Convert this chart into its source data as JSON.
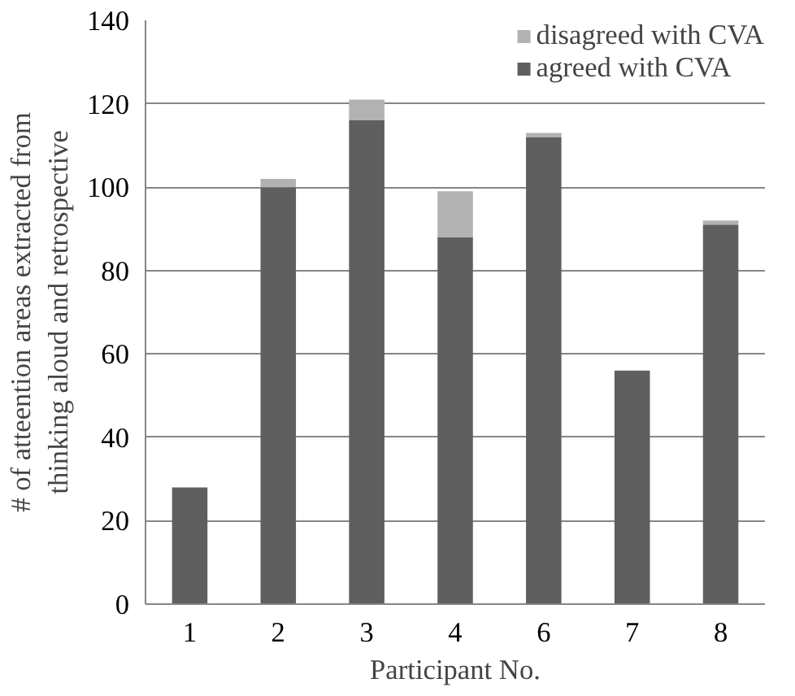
{
  "chart_data": {
    "type": "bar",
    "stacked": true,
    "xlabel": "Participant No.",
    "ylabel": "# of atteention areas extracted from thinking aloud and retrospective",
    "categories": [
      "1",
      "2",
      "3",
      "4",
      "6",
      "7",
      "8"
    ],
    "series": [
      {
        "name": "agreed with CVA",
        "color": "#5f5f5f",
        "values": [
          28,
          100,
          116,
          88,
          112,
          56,
          91
        ]
      },
      {
        "name": "disagreed with CVA",
        "color": "#b2b2b2",
        "values": [
          0,
          2,
          5,
          11,
          1,
          0,
          1
        ]
      }
    ],
    "ylim": [
      0,
      140
    ],
    "yticks": [
      0,
      20,
      40,
      60,
      80,
      100,
      120,
      140
    ],
    "grid": "y",
    "legend": "top right"
  }
}
